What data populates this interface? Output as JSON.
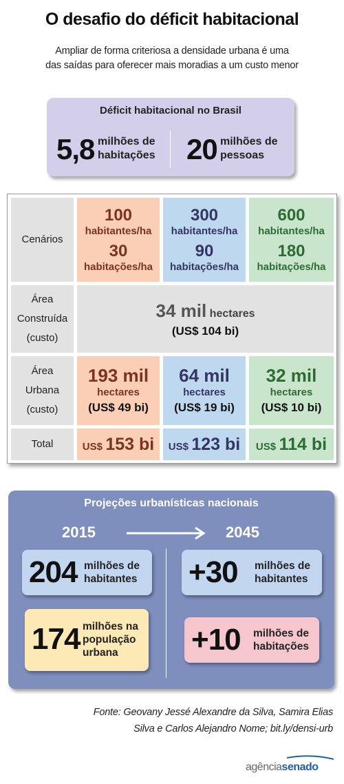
{
  "title": "O desafio do déficit habitacional",
  "subtitle": [
    "Ampliar de forma criteriosa a densidade urbana é uma",
    "das saídas para oferecer mais moradias a um custo menor"
  ],
  "deficit": {
    "title": "Déficit habitacional no Brasil",
    "left_number": "5,8",
    "left_unit": [
      "milhões de",
      "habitações"
    ],
    "right_number": "20",
    "right_unit": [
      "milhões de",
      "pessoas"
    ]
  },
  "table": {
    "row_labels": {
      "cenarios": "Cenários",
      "area_construida": [
        "Área",
        "Construída",
        "(custo)"
      ],
      "area_urbana": [
        "Área",
        "Urbana",
        "(custo)"
      ],
      "total": "Total"
    },
    "scenarios": [
      {
        "habitantes": "100",
        "habitantes_unit": "habitantes/ha",
        "habitacoes": "30",
        "habitacoes_unit": "habitações/ha",
        "area_urbana": "193 mil",
        "area_unit": "hectares",
        "area_cost": "(US$ 49 bi)",
        "total_currency": "US$",
        "total_value": "153 bi"
      },
      {
        "habitantes": "300",
        "habitantes_unit": "habitantes/ha",
        "habitacoes": "90",
        "habitacoes_unit": "habitações/ha",
        "area_urbana": "64 mil",
        "area_unit": "hectares",
        "area_cost": "(US$ 19 bi)",
        "total_currency": "US$",
        "total_value": "123 bi"
      },
      {
        "habitantes": "600",
        "habitantes_unit": "habitantes/ha",
        "habitacoes": "180",
        "habitacoes_unit": "habitações/ha",
        "area_urbana": "32 mil",
        "area_unit": "hectares",
        "area_cost": "(US$ 10 bi)",
        "total_currency": "US$",
        "total_value": "114 bi"
      }
    ],
    "area_construida": {
      "value": "34 mil",
      "unit": "hectares",
      "cost": "(US$ 104 bi)"
    }
  },
  "projections": {
    "title": "Projeções urbanísticas nacionais",
    "year_start": "2015",
    "year_end": "2045",
    "left": [
      {
        "number": "204",
        "unit": [
          "milhões de",
          "habitantes"
        ]
      },
      {
        "number": "174",
        "unit": [
          "milhões na",
          "população",
          "urbana"
        ]
      }
    ],
    "right": [
      {
        "number": "+30",
        "unit": [
          "milhões de",
          "habitantes"
        ]
      },
      {
        "number": "+10",
        "unit": [
          "milhões de",
          "habitações"
        ]
      }
    ]
  },
  "source": [
    "Fonte: Geovany Jessé Alexandre da Silva, Samira Elias",
    "Silva e Carlos Alejandro Nome; bit.ly/densi-urb"
  ],
  "logo": {
    "part1": "agência",
    "part2": "senado"
  },
  "colors": {
    "deficit_bg": "#d3ceea",
    "orange": "#fbcfb5",
    "blue": "#bdd8ef",
    "green": "#c9e6cc",
    "projections_bg": "#7e8fbe",
    "box_blue": "#c3d6f0",
    "box_yellow": "#fde9b5",
    "box_pink": "#f6c6cf",
    "logo_blue": "#1f5fa8"
  }
}
